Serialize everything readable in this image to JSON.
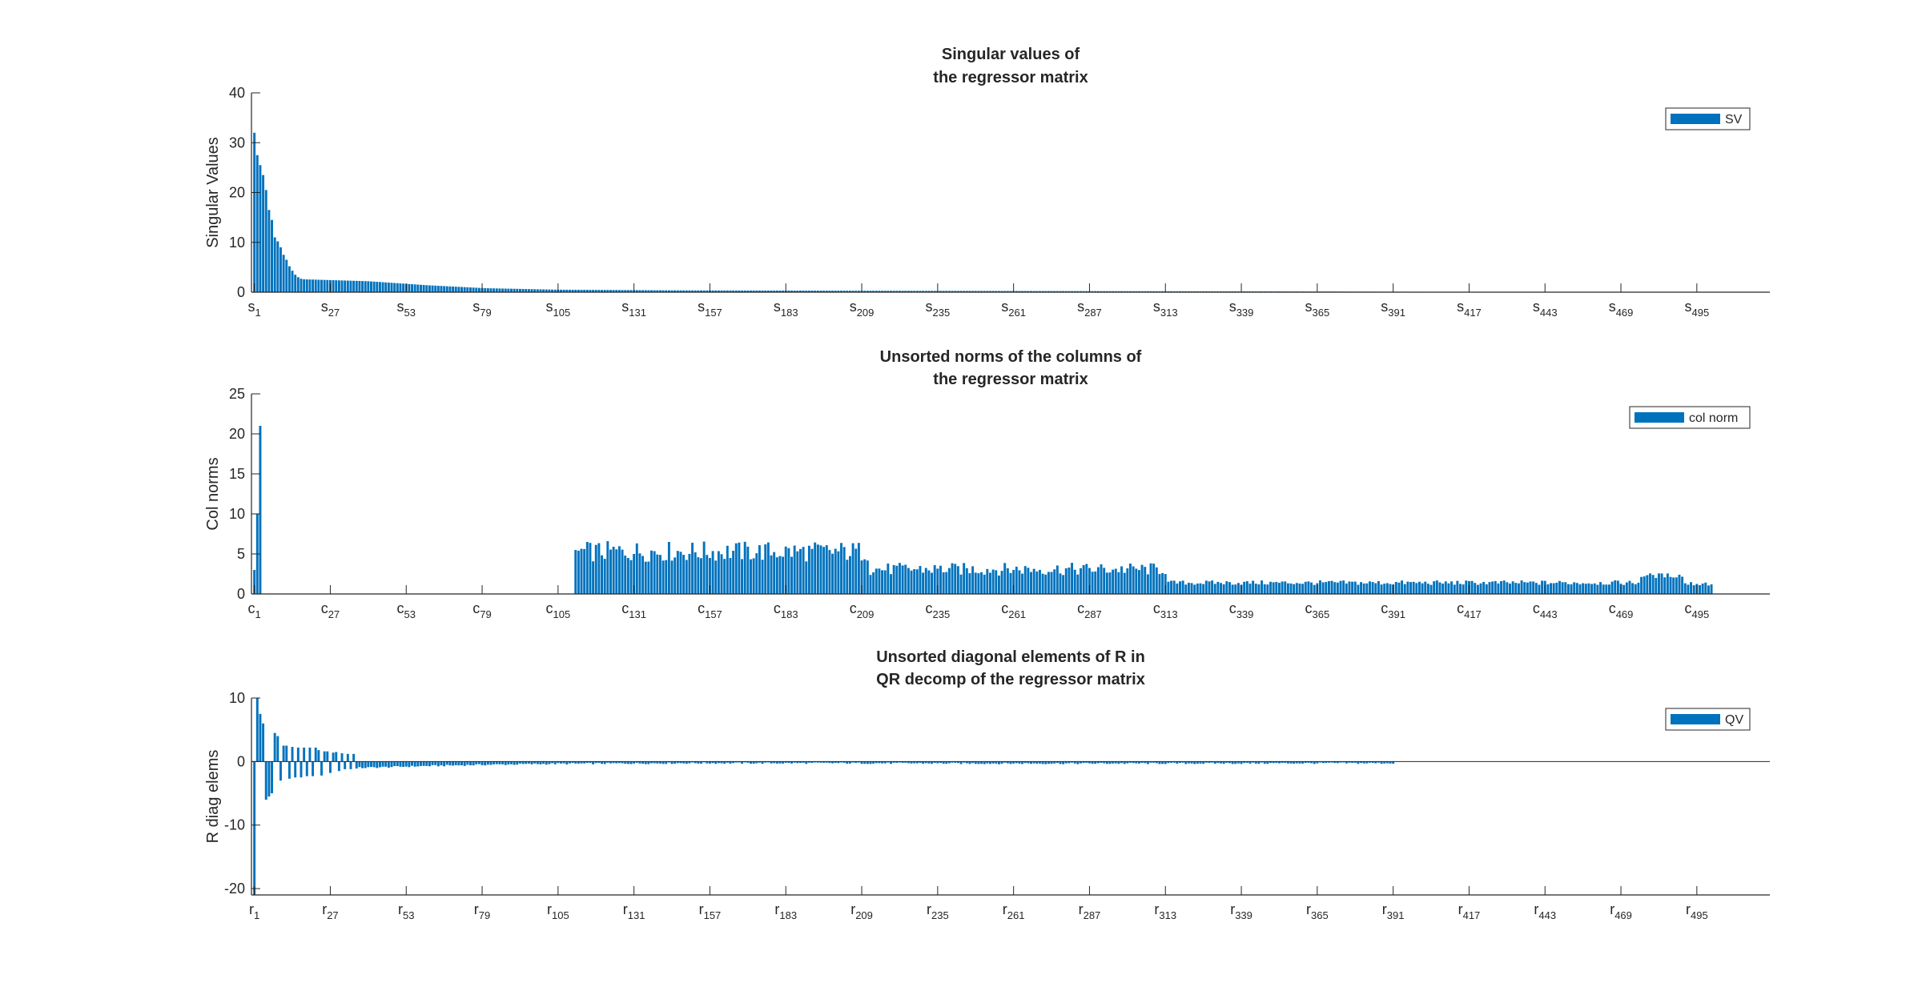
{
  "chart_data": [
    {
      "type": "bar",
      "title": [
        "Singular values of",
        "the regressor matrix"
      ],
      "ylabel": "Singular Values",
      "ylim": [
        0,
        40
      ],
      "yticks": [
        0,
        10,
        20,
        30,
        40
      ],
      "xlim": [
        0,
        520
      ],
      "n": 500,
      "legend": "SV",
      "legend_location": "top-right",
      "tick_base": "s",
      "tick_subs": [
        "1",
        "27",
        "53",
        "79",
        "105",
        "131",
        "157",
        "183",
        "209",
        "235",
        "261",
        "287",
        "313",
        "339",
        "365",
        "391",
        "417",
        "443",
        "469",
        "495"
      ],
      "values_head": [
        32,
        27.5,
        25.5,
        23.5,
        20.5,
        16.5,
        14.5,
        11,
        10.2,
        9,
        7.5,
        6.5,
        5.2,
        4.3,
        3.5,
        3.0,
        2.7
      ],
      "profile": [
        [
          17,
          2.6
        ],
        [
          40,
          2.2
        ],
        [
          60,
          1.4
        ],
        [
          80,
          0.8
        ],
        [
          105,
          0.5
        ],
        [
          150,
          0.35
        ],
        [
          250,
          0.25
        ],
        [
          350,
          0.15
        ],
        [
          420,
          0.06
        ],
        [
          500,
          0.02
        ]
      ]
    },
    {
      "type": "bar",
      "title": [
        "Unsorted norms of the columns of",
        "the regressor matrix"
      ],
      "ylabel": "Col norms",
      "ylim": [
        0,
        25
      ],
      "yticks": [
        0,
        5,
        10,
        15,
        20,
        25
      ],
      "xlim": [
        0,
        520
      ],
      "n": 500,
      "legend": "col norm",
      "legend_location": "top-right",
      "tick_base": "c",
      "tick_subs": [
        "1",
        "27",
        "53",
        "79",
        "105",
        "131",
        "157",
        "183",
        "209",
        "235",
        "261",
        "287",
        "313",
        "339",
        "365",
        "391",
        "417",
        "443",
        "469",
        "495"
      ],
      "values_head": [
        3.0,
        10.0,
        21.0
      ],
      "segments": [
        {
          "from": 4,
          "to": 110,
          "level": 0.05,
          "spread": 0
        },
        {
          "from": 111,
          "to": 211,
          "level": 5.3,
          "spread": 1.3
        },
        {
          "from": 212,
          "to": 313,
          "level": 3.1,
          "spread": 0.8
        },
        {
          "from": 314,
          "to": 475,
          "level": 1.4,
          "spread": 0.3
        },
        {
          "from": 476,
          "to": 490,
          "level": 2.3,
          "spread": 0.3
        },
        {
          "from": 491,
          "to": 500,
          "level": 1.3,
          "spread": 0.3
        }
      ]
    },
    {
      "type": "bar",
      "title": [
        "Unsorted diagonal elements of R in",
        "QR decomp of the regressor matrix"
      ],
      "ylabel": "R diag elems",
      "ylim": [
        -21,
        10
      ],
      "yticks": [
        -20,
        -10,
        0,
        10
      ],
      "xlim": [
        0,
        520
      ],
      "n": 500,
      "legend": "QV",
      "legend_location": "top-right",
      "tick_base": "r",
      "tick_subs": [
        "1",
        "27",
        "53",
        "79",
        "105",
        "131",
        "157",
        "183",
        "209",
        "235",
        "261",
        "287",
        "313",
        "339",
        "365",
        "391",
        "417",
        "443",
        "469",
        "495"
      ],
      "values_head": [
        -21,
        10,
        7.5,
        6,
        -6,
        -5.5,
        -5,
        4.5,
        4,
        -3,
        2.5,
        2.5,
        -2.7,
        2.3,
        -2.5,
        2.2,
        -2.5,
        2.2,
        -2.3,
        2.2,
        -2.3,
        2.2,
        1.8,
        -2.2,
        1.6,
        1.6,
        -1.8,
        1.4,
        1.5,
        -1.5,
        1.3,
        -1.2,
        1.2,
        -1.2,
        1.2,
        -1.1
      ],
      "profile": [
        [
          36,
          -1.0
        ],
        [
          60,
          -0.7
        ],
        [
          80,
          -0.5
        ],
        [
          105,
          -0.35
        ],
        [
          150,
          -0.25
        ],
        [
          200,
          -0.25
        ],
        [
          250,
          -0.3
        ],
        [
          300,
          -0.3
        ],
        [
          390,
          -0.25
        ]
      ],
      "nonzero_until": 391
    }
  ]
}
